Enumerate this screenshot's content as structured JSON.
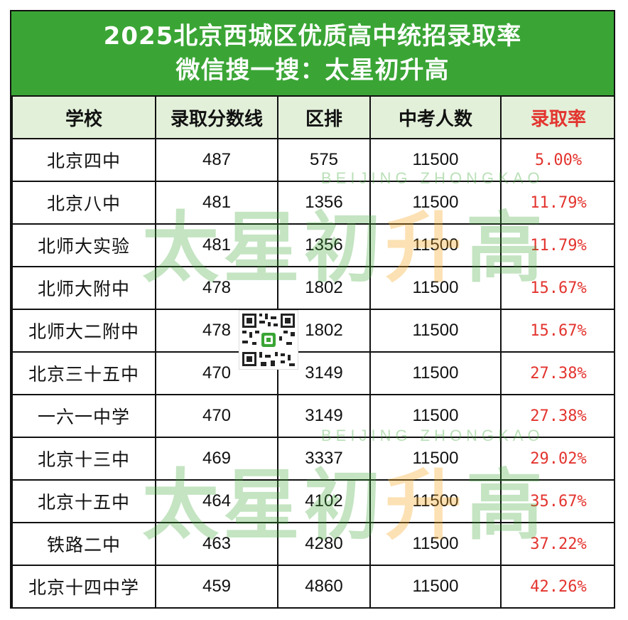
{
  "title": {
    "line1": "2025北京西城区优质高中统招录取率",
    "line2": "微信搜一搜：太星初升高"
  },
  "columns": [
    "学校",
    "录取分数线",
    "区排",
    "中考人数",
    "录取率"
  ],
  "rows": [
    {
      "school": "北京四中",
      "score": "487",
      "rank": "575",
      "total": "11500",
      "rate": "5.00%"
    },
    {
      "school": "北京八中",
      "score": "481",
      "rank": "1356",
      "total": "11500",
      "rate": "11.79%"
    },
    {
      "school": "北师大实验",
      "score": "481",
      "rank": "1356",
      "total": "11500",
      "rate": "11.79%"
    },
    {
      "school": "北师大附中",
      "score": "478",
      "rank": "1802",
      "total": "11500",
      "rate": "15.67%"
    },
    {
      "school": "北师大二附中",
      "score": "478",
      "rank": "1802",
      "total": "11500",
      "rate": "15.67%"
    },
    {
      "school": "北京三十五中",
      "score": "470",
      "rank": "3149",
      "total": "11500",
      "rate": "27.38%"
    },
    {
      "school": "一六一中学",
      "score": "470",
      "rank": "3149",
      "total": "11500",
      "rate": "27.38%"
    },
    {
      "school": "北京十三中",
      "score": "469",
      "rank": "3337",
      "total": "11500",
      "rate": "29.02%"
    },
    {
      "school": "北京十五中",
      "score": "464",
      "rank": "4102",
      "total": "11500",
      "rate": "35.67%"
    },
    {
      "school": "铁路二中",
      "score": "463",
      "rank": "4280",
      "total": "11500",
      "rate": "37.22%"
    },
    {
      "school": "北京十四中学",
      "score": "459",
      "rank": "4860",
      "total": "11500",
      "rate": "42.26%"
    }
  ],
  "watermark": {
    "brand_prefix": "太星初",
    "brand_mid": "升",
    "brand_suffix": "高",
    "sub": "BEIJING ZHONGKAO"
  },
  "colors": {
    "header_green": "#3aa535",
    "header_row_bg": "#e2f0d9",
    "rate_red": "#e3342f"
  }
}
